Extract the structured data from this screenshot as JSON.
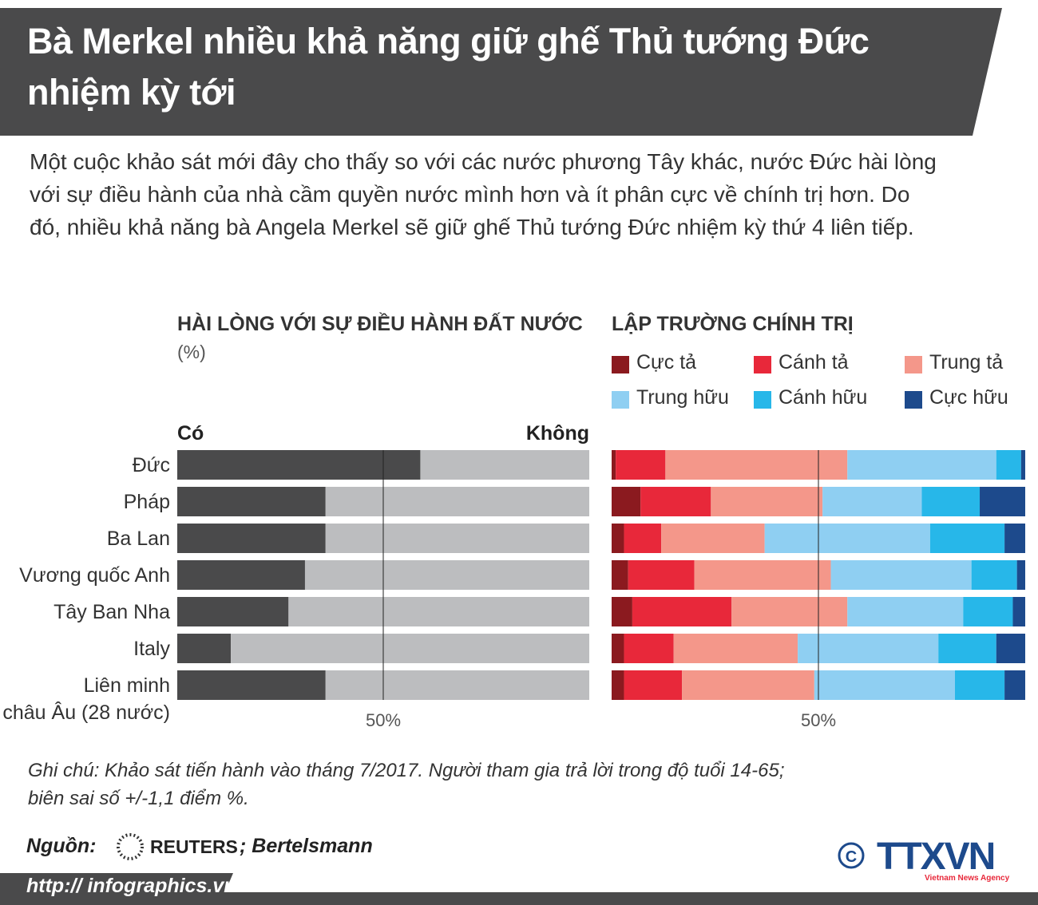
{
  "header": {
    "title": "Bà Merkel nhiều khả năng giữ ghế Thủ tướng Đức nhiệm kỳ tới",
    "subtitle": "Một cuộc khảo sát mới đây cho thấy so với các nước phương Tây khác, nước Đức hài lòng với sự điều hành của nhà cầm quyền nước mình hơn và ít phân cực về chính trị hơn. Do đó, nhiều khả năng bà Angela Merkel sẽ giữ ghế Thủ tướng Đức nhiệm kỳ thứ 4 liên tiếp."
  },
  "chart_data": [
    {
      "type": "bar",
      "orientation": "horizontal",
      "stacked": true,
      "title": "HÀI LÒNG VỚI SỰ ĐIỀU HÀNH ĐẤT NƯỚC",
      "subtitle": "(%)",
      "categories": [
        "Đức",
        "Pháp",
        "Ba Lan",
        "Vương quốc Anh",
        "Tây Ban Nha",
        "Italy",
        "Liên minh\nchâu Âu (28 nước)"
      ],
      "series": [
        {
          "name": "Có",
          "color": "#4a4a4b",
          "values": [
            59,
            36,
            36,
            31,
            27,
            13,
            36
          ]
        },
        {
          "name": "Không",
          "color": "#bcbdbf",
          "values": [
            41,
            64,
            64,
            69,
            73,
            87,
            64
          ]
        }
      ],
      "xlim": [
        0,
        100
      ],
      "xticks": [
        {
          "value": 50,
          "label": "50%"
        }
      ]
    },
    {
      "type": "bar",
      "orientation": "horizontal",
      "stacked": true,
      "title": "LẬP TRƯỜNG CHÍNH TRỊ",
      "series": [
        {
          "name": "Cực tả",
          "color": "#8b1a1f",
          "values": [
            1,
            7,
            3,
            4,
            5,
            3,
            3
          ]
        },
        {
          "name": "Cánh tả",
          "color": "#e8283a",
          "values": [
            12,
            17,
            9,
            16,
            24,
            12,
            14
          ]
        },
        {
          "name": "Trung tả",
          "color": "#f4978a",
          "values": [
            44,
            27,
            25,
            33,
            28,
            30,
            32
          ]
        },
        {
          "name": "Trung hữu",
          "color": "#8fcff2",
          "values": [
            36,
            24,
            40,
            34,
            28,
            34,
            34
          ]
        },
        {
          "name": "Cánh hữu",
          "color": "#27b7e9",
          "values": [
            6,
            14,
            18,
            11,
            12,
            14,
            12
          ]
        },
        {
          "name": "Cực hữu",
          "color": "#1d4a8c",
          "values": [
            1,
            11,
            5,
            2,
            3,
            7,
            5
          ]
        }
      ],
      "xlim": [
        0,
        100
      ],
      "xticks": [
        {
          "value": 50,
          "label": "50%"
        }
      ]
    }
  ],
  "note": "Ghi chú: Khảo sát tiến hành vào tháng 7/2017. Người tham gia trả lời trong độ tuổi 14-65;\nbiên sai số +/-1,1 điểm %.",
  "source": {
    "label": "Nguồn:",
    "names": [
      "REUTERS",
      "; Bertelsmann"
    ]
  },
  "logo": {
    "text": "TTXVN",
    "sub": "Vietnam News Agency"
  },
  "url": "http:// infographics.vn"
}
